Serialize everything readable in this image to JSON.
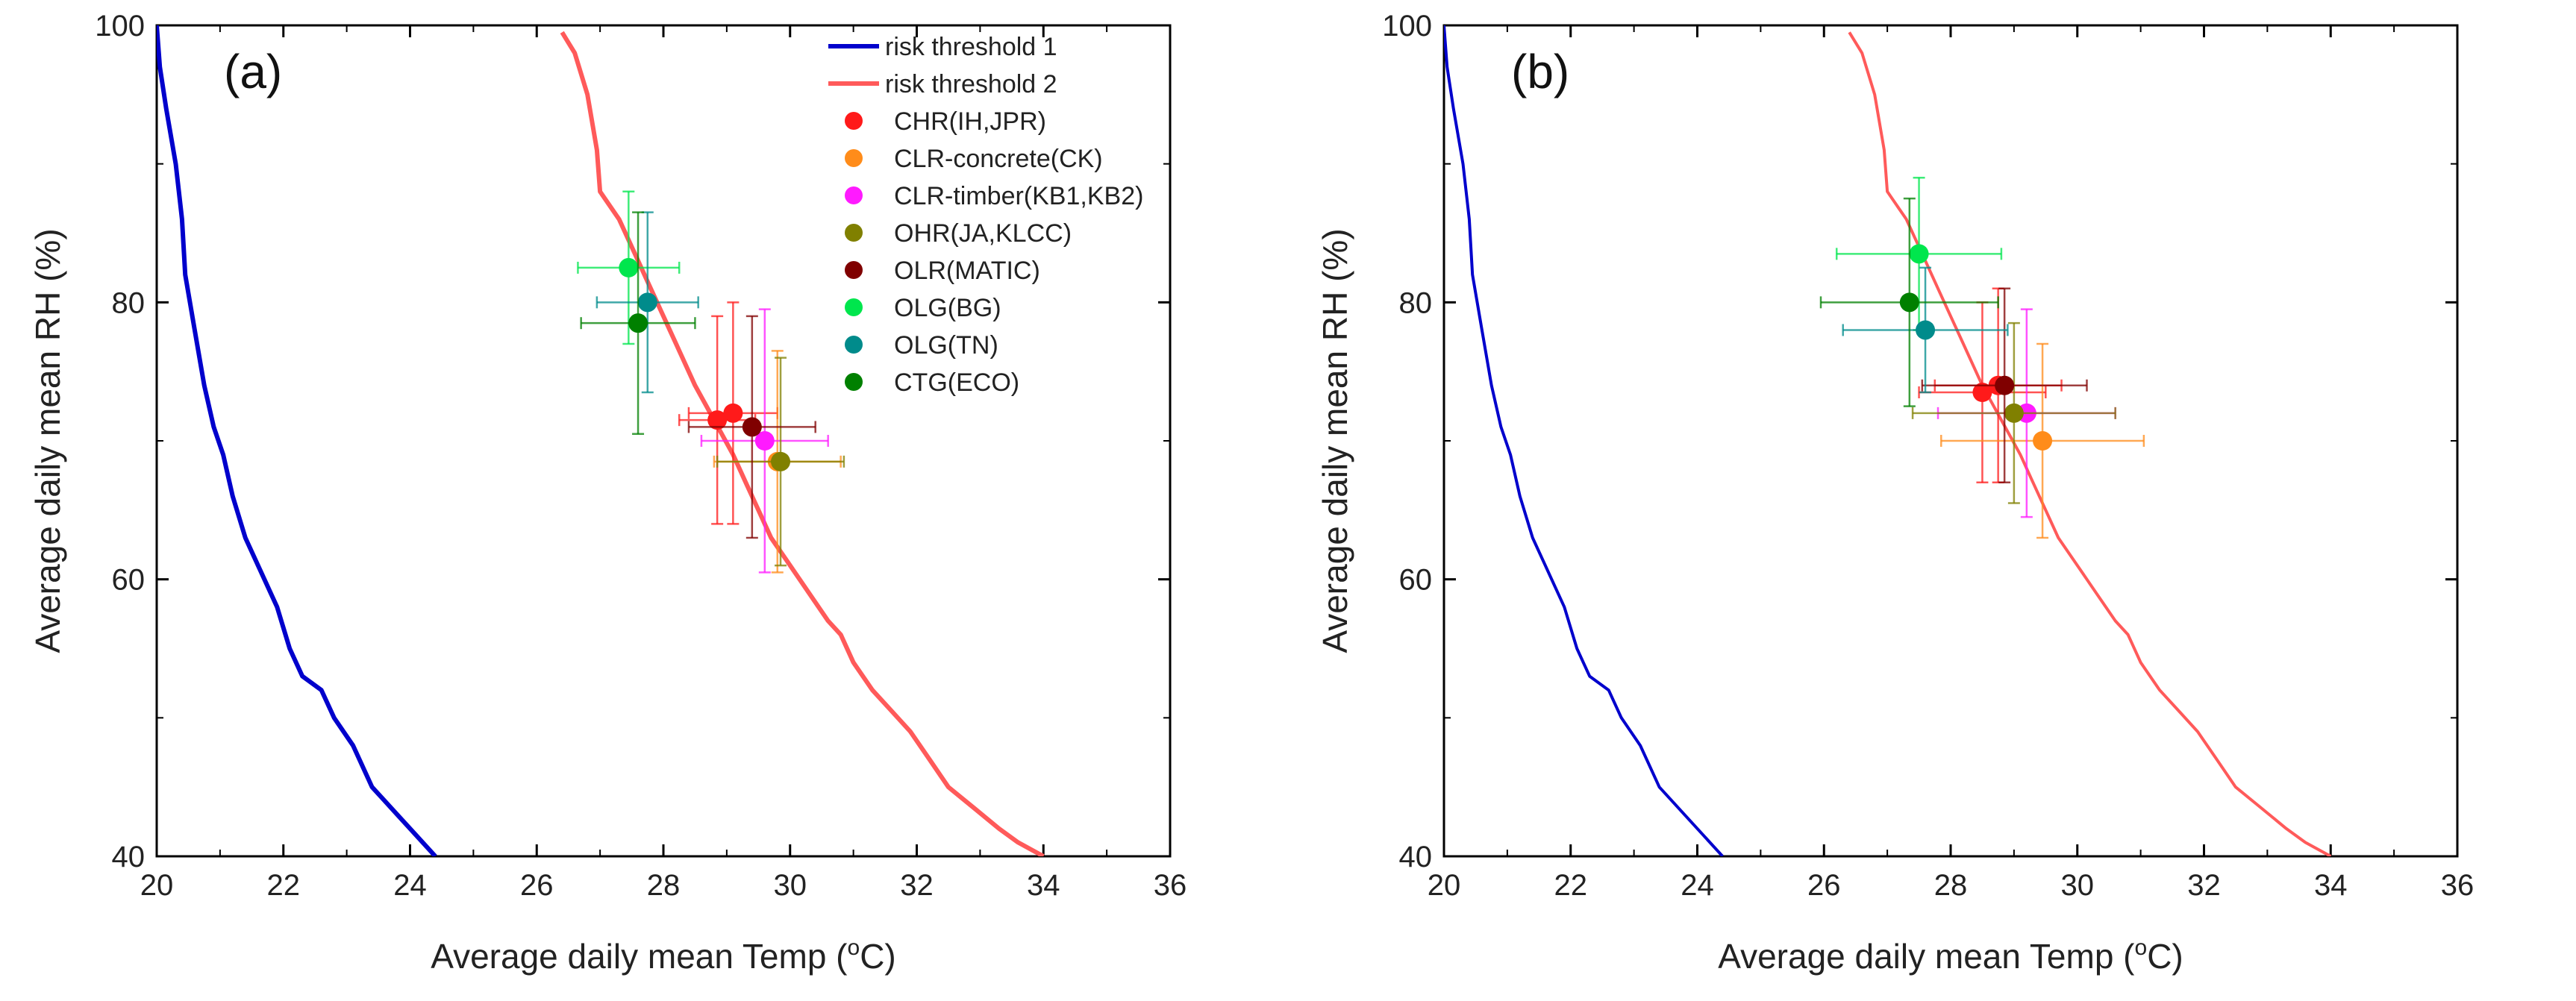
{
  "chart_data": [
    {
      "type": "scatter",
      "panel_label": "(a)",
      "xlabel": "Average daily mean Temp (",
      "xlabel_sup": "o",
      "xlabel_suffix": "C)",
      "ylabel": "Average daily mean RH (%)",
      "xlim": [
        20,
        36
      ],
      "ylim": [
        40,
        100
      ],
      "xticks": [
        "20",
        "22",
        "24",
        "26",
        "28",
        "30",
        "32",
        "34",
        "36"
      ],
      "yticks": [
        "40",
        "60",
        "80",
        "100"
      ],
      "legend_position": "top-right",
      "show_legend": true,
      "lines": [
        {
          "name": "risk threshold 1",
          "color": "#0000cc",
          "points": [
            [
              20.0,
              100
            ],
            [
              20.05,
              97
            ],
            [
              20.15,
              94
            ],
            [
              20.3,
              90
            ],
            [
              20.4,
              86
            ],
            [
              20.45,
              82
            ],
            [
              20.6,
              78
            ],
            [
              20.75,
              74
            ],
            [
              20.9,
              71
            ],
            [
              21.05,
              69
            ],
            [
              21.2,
              66
            ],
            [
              21.4,
              63
            ],
            [
              21.6,
              61
            ],
            [
              21.9,
              58
            ],
            [
              22.1,
              55
            ],
            [
              22.3,
              53
            ],
            [
              22.6,
              52
            ],
            [
              22.8,
              50
            ],
            [
              23.1,
              48
            ],
            [
              23.4,
              45
            ],
            [
              23.8,
              43
            ],
            [
              24.1,
              41.5
            ],
            [
              24.4,
              40
            ]
          ]
        },
        {
          "name": "risk threshold 2",
          "color": "#ff5a5a",
          "points": [
            [
              26.4,
              99.5
            ],
            [
              26.6,
              98
            ],
            [
              26.8,
              95
            ],
            [
              26.95,
              91
            ],
            [
              27.0,
              88
            ],
            [
              27.3,
              86
            ],
            [
              27.6,
              83
            ],
            [
              27.8,
              81
            ],
            [
              28.0,
              79
            ],
            [
              28.2,
              77
            ],
            [
              28.5,
              74
            ],
            [
              28.8,
              71.5
            ],
            [
              29.1,
              69
            ],
            [
              29.3,
              67
            ],
            [
              29.5,
              65
            ],
            [
              29.7,
              63
            ],
            [
              30.0,
              61
            ],
            [
              30.3,
              59
            ],
            [
              30.6,
              57
            ],
            [
              30.8,
              56
            ],
            [
              31.0,
              54
            ],
            [
              31.3,
              52
            ],
            [
              31.6,
              50.5
            ],
            [
              31.9,
              49
            ],
            [
              32.2,
              47
            ],
            [
              32.5,
              45
            ],
            [
              32.9,
              43.5
            ],
            [
              33.3,
              42
            ],
            [
              33.6,
              41
            ],
            [
              34.0,
              40
            ]
          ]
        }
      ],
      "series": [
        {
          "name": "CHR(IH,JPR)",
          "color": "#ff1a1a",
          "points": [
            [
              28.85,
              71.5,
              0.6,
              0.6,
              7.5,
              7.5
            ],
            [
              29.1,
              72.0,
              0.7,
              0.7,
              8.0,
              8.0
            ]
          ]
        },
        {
          "name": "CLR-concrete(CK)",
          "color": "#ff8c1a",
          "points": [
            [
              29.8,
              68.5,
              1.0,
              1.0,
              8.0,
              8.0
            ]
          ]
        },
        {
          "name": "CLR-timber(KB1,KB2)",
          "color": "#ff1aff",
          "points": [
            [
              29.6,
              70.0,
              1.0,
              1.0,
              9.5,
              9.5
            ]
          ]
        },
        {
          "name": "OHR(JA,KLCC)",
          "color": "#808000",
          "points": [
            [
              29.85,
              68.5,
              1.0,
              1.0,
              7.5,
              7.5
            ]
          ]
        },
        {
          "name": "OLR(MATIC)",
          "color": "#800000",
          "points": [
            [
              29.4,
              71.0,
              1.0,
              1.0,
              8.0,
              8.0
            ]
          ]
        },
        {
          "name": "OLG(BG)",
          "color": "#00e64d",
          "points": [
            [
              27.45,
              82.5,
              0.8,
              0.8,
              5.5,
              5.5
            ]
          ]
        },
        {
          "name": "OLG(TN)",
          "color": "#008b8b",
          "points": [
            [
              27.75,
              80.0,
              0.8,
              0.8,
              6.5,
              6.5
            ]
          ]
        },
        {
          "name": "CTG(ECO)",
          "color": "#008000",
          "points": [
            [
              27.6,
              78.5,
              0.9,
              0.9,
              8.0,
              8.0
            ]
          ]
        }
      ]
    },
    {
      "type": "scatter",
      "panel_label": "(b)",
      "xlabel": "Average daily mean Temp (",
      "xlabel_sup": "o",
      "xlabel_suffix": "C)",
      "ylabel": "Average daily mean RH (%)",
      "xlim": [
        20,
        36
      ],
      "ylim": [
        40,
        100
      ],
      "xticks": [
        "20",
        "22",
        "24",
        "26",
        "28",
        "30",
        "32",
        "34",
        "36"
      ],
      "yticks": [
        "40",
        "60",
        "80",
        "100"
      ],
      "show_legend": false,
      "lines": [
        {
          "name": "risk threshold 1",
          "color": "#0000cc",
          "points": [
            [
              20.0,
              100
            ],
            [
              20.05,
              97
            ],
            [
              20.15,
              94
            ],
            [
              20.3,
              90
            ],
            [
              20.4,
              86
            ],
            [
              20.45,
              82
            ],
            [
              20.6,
              78
            ],
            [
              20.75,
              74
            ],
            [
              20.9,
              71
            ],
            [
              21.05,
              69
            ],
            [
              21.2,
              66
            ],
            [
              21.4,
              63
            ],
            [
              21.6,
              61
            ],
            [
              21.9,
              58
            ],
            [
              22.1,
              55
            ],
            [
              22.3,
              53
            ],
            [
              22.6,
              52
            ],
            [
              22.8,
              50
            ],
            [
              23.1,
              48
            ],
            [
              23.4,
              45
            ],
            [
              23.8,
              43
            ],
            [
              24.1,
              41.5
            ],
            [
              24.4,
              40
            ]
          ]
        },
        {
          "name": "risk threshold 2",
          "color": "#ff5a5a",
          "points": [
            [
              26.4,
              99.5
            ],
            [
              26.6,
              98
            ],
            [
              26.8,
              95
            ],
            [
              26.95,
              91
            ],
            [
              27.0,
              88
            ],
            [
              27.3,
              86
            ],
            [
              27.6,
              83
            ],
            [
              27.8,
              81
            ],
            [
              28.0,
              79
            ],
            [
              28.2,
              77
            ],
            [
              28.5,
              74
            ],
            [
              28.8,
              71.5
            ],
            [
              29.1,
              69
            ],
            [
              29.3,
              67
            ],
            [
              29.5,
              65
            ],
            [
              29.7,
              63
            ],
            [
              30.0,
              61
            ],
            [
              30.3,
              59
            ],
            [
              30.6,
              57
            ],
            [
              30.8,
              56
            ],
            [
              31.0,
              54
            ],
            [
              31.3,
              52
            ],
            [
              31.6,
              50.5
            ],
            [
              31.9,
              49
            ],
            [
              32.2,
              47
            ],
            [
              32.5,
              45
            ],
            [
              32.9,
              43.5
            ],
            [
              33.3,
              42
            ],
            [
              33.6,
              41
            ],
            [
              34.0,
              40
            ]
          ]
        }
      ],
      "series": [
        {
          "name": "CHR(IH,JPR)",
          "color": "#ff1a1a",
          "points": [
            [
              28.5,
              73.5,
              1.0,
              1.0,
              6.5,
              6.5
            ],
            [
              28.75,
              74.0,
              1.0,
              1.0,
              7.0,
              7.0
            ]
          ]
        },
        {
          "name": "CLR-concrete(CK)",
          "color": "#ff8c1a",
          "points": [
            [
              29.45,
              70.0,
              1.6,
              1.6,
              7.0,
              7.0
            ]
          ]
        },
        {
          "name": "CLR-timber(KB1,KB2)",
          "color": "#ff1aff",
          "points": [
            [
              29.2,
              72.0,
              1.4,
              1.4,
              7.5,
              7.5
            ]
          ]
        },
        {
          "name": "OHR(JA,KLCC)",
          "color": "#808000",
          "points": [
            [
              29.0,
              72.0,
              1.6,
              1.6,
              6.5,
              6.5
            ]
          ]
        },
        {
          "name": "OLR(MATIC)",
          "color": "#800000",
          "points": [
            [
              28.85,
              74.0,
              1.3,
              1.3,
              7.0,
              7.0
            ]
          ]
        },
        {
          "name": "OLG(BG)",
          "color": "#00e64d",
          "points": [
            [
              27.5,
              83.5,
              1.3,
              1.3,
              5.5,
              5.5
            ]
          ]
        },
        {
          "name": "OLG(TN)",
          "color": "#008b8b",
          "points": [
            [
              27.6,
              78.0,
              1.3,
              1.3,
              4.5,
              4.5
            ]
          ]
        },
        {
          "name": "CTG(ECO)",
          "color": "#008000",
          "points": [
            [
              27.35,
              80.0,
              1.4,
              1.4,
              7.5,
              7.5
            ]
          ]
        }
      ]
    }
  ]
}
